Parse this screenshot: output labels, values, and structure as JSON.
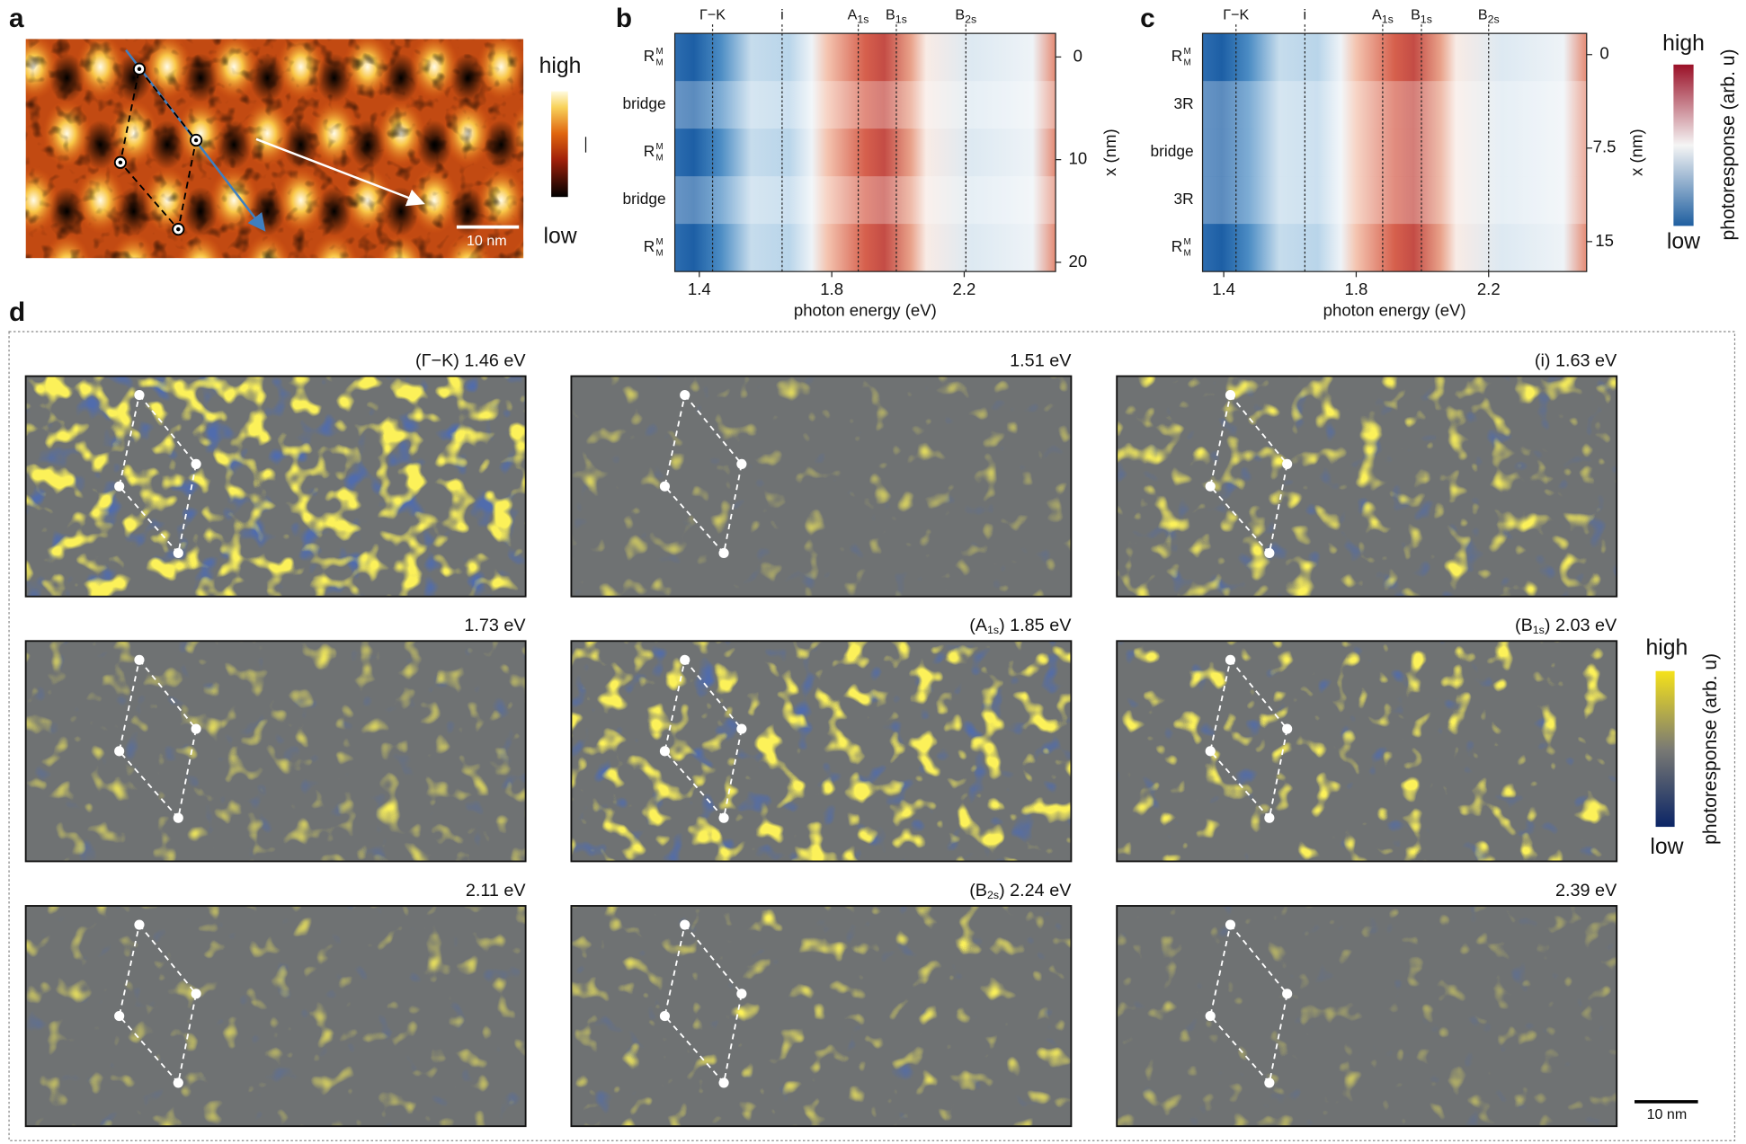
{
  "panels": {
    "a": {
      "label": "a",
      "colorbar": {
        "high": "high",
        "low": "low"
      },
      "scalebar": "10 nm"
    },
    "b": {
      "label": "b",
      "xlabel": "photon energy (eV)",
      "ylabel": "x (nm)",
      "xlim": [
        1.326,
        2.476
      ],
      "xticks": [
        1.4,
        1.8,
        2.2
      ],
      "ylim": [
        -2.3,
        20.9
      ],
      "yticks": [
        0,
        10,
        20
      ],
      "rows": [
        {
          "base": "R",
          "sup": "M",
          "sub": "M"
        },
        {
          "base": "bridge"
        },
        {
          "base": "R",
          "sup": "M",
          "sub": "M"
        },
        {
          "base": "bridge"
        },
        {
          "base": "R",
          "sup": "M",
          "sub": "M"
        }
      ],
      "lines": [
        {
          "label": [
            "Γ−K"
          ],
          "x": 1.44
        },
        {
          "label": [
            "i"
          ],
          "x": 1.65
        },
        {
          "label": [
            "A",
            "1s"
          ],
          "x": 1.88
        },
        {
          "label": [
            "B",
            "1s"
          ],
          "x": 1.995
        },
        {
          "label": [
            "B",
            "2s"
          ],
          "x": 2.205
        }
      ]
    },
    "c": {
      "label": "c",
      "xlabel": "photon energy (eV)",
      "ylabel": "x (nm)",
      "xlim": [
        1.336,
        2.496
      ],
      "xticks": [
        1.4,
        1.8,
        2.2
      ],
      "ylim": [
        -1.7,
        17.4
      ],
      "yticks": [
        0,
        7.5,
        15
      ],
      "rows": [
        {
          "base": "R",
          "sup": "M",
          "sub": "M"
        },
        {
          "base": "3R"
        },
        {
          "base": "bridge"
        },
        {
          "base": "3R"
        },
        {
          "base": "R",
          "sup": "M",
          "sub": "M"
        }
      ],
      "lines": [
        {
          "label": [
            "Γ−K"
          ],
          "x": 1.437
        },
        {
          "label": [
            "i"
          ],
          "x": 1.645
        },
        {
          "label": [
            "A",
            "1s"
          ],
          "x": 1.88
        },
        {
          "label": [
            "B",
            "1s"
          ],
          "x": 1.997
        },
        {
          "label": [
            "B",
            "2s"
          ],
          "x": 2.2
        }
      ]
    }
  },
  "colorbar_bc": {
    "high": "high",
    "low": "low",
    "label": "photoresponse (arb. u)"
  },
  "d": {
    "label": "d",
    "maps": [
      {
        "title": [
          "(Γ−K) 1.46 eV"
        ]
      },
      {
        "title": [
          "1.51 eV"
        ]
      },
      {
        "title": [
          "(i) 1.63 eV"
        ]
      },
      {
        "title": [
          "1.73 eV"
        ]
      },
      {
        "title": [
          "(A",
          "1s",
          ") 1.85 eV"
        ]
      },
      {
        "title": [
          "(B",
          "1s",
          ") 2.03 eV"
        ]
      },
      {
        "title": [
          "2.11 eV"
        ]
      },
      {
        "title": [
          "(B",
          "2s",
          ") 2.24 eV"
        ]
      },
      {
        "title": [
          "2.39 eV"
        ]
      }
    ],
    "colorbar": {
      "high": "high",
      "low": "low",
      "label": "photoresponse (arb. u)"
    },
    "scalebar": "10 nm"
  }
}
